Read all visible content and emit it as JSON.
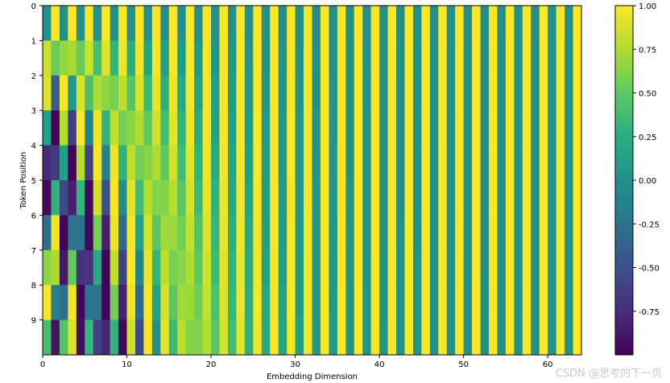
{
  "watermark": "CSDN @思考的下一页",
  "chart_data": {
    "type": "heatmap",
    "title": "",
    "xlabel": "Embedding Dimension",
    "ylabel": "Token Position",
    "d_model": 64,
    "positions": [
      0,
      1,
      2,
      3,
      4,
      5,
      6,
      7,
      8,
      9
    ],
    "x_ticks": [
      0,
      10,
      20,
      30,
      40,
      50,
      60
    ],
    "y_ticks": [
      0,
      1,
      2,
      3,
      4,
      5,
      6,
      7,
      8,
      9
    ],
    "xlim": [
      0,
      64
    ],
    "ylim": [
      10,
      0
    ],
    "colormap": "viridis",
    "value_range": [
      -1,
      1
    ],
    "colorbar_ticks": [
      "1.00",
      "0.75",
      "0.50",
      "0.25",
      "0.00",
      "-0.25",
      "-0.50",
      "-0.75"
    ],
    "colorbar_tick_values": [
      1.0,
      0.75,
      0.5,
      0.25,
      0.0,
      -0.25,
      -0.5,
      -0.75
    ],
    "encoding": "sinusoidal: even dims sin(pos / 10000^(i/64)), odd dims cos(pos / 10000^((i-1)/64))"
  }
}
